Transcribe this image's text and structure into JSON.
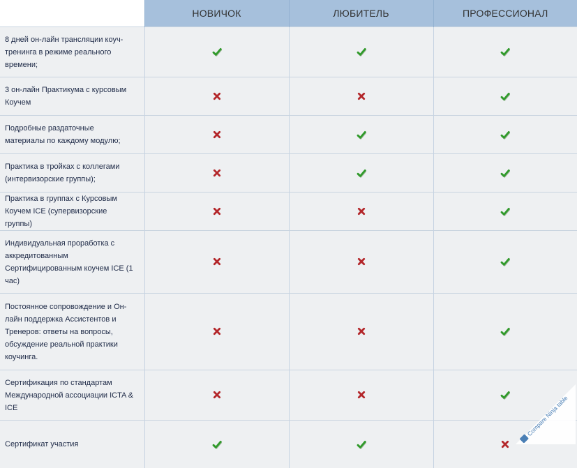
{
  "plans": [
    "НОВИЧОК",
    "ЛЮБИТЕЛЬ",
    "ПРОФЕССИОНАЛ"
  ],
  "features": [
    {
      "label": "8 дней он-лайн трансляции коуч-тренинга в режиме реального времени;",
      "marks": [
        true,
        true,
        true
      ]
    },
    {
      "label": "3 он-лайн Практикума с курсовым Коучем",
      "marks": [
        false,
        false,
        true
      ]
    },
    {
      "label": "Подробные раздаточные материалы по каждому модулю;",
      "marks": [
        false,
        true,
        true
      ]
    },
    {
      "label": "Практика в тройках с коллегами (интервизорские группы);",
      "marks": [
        false,
        true,
        true
      ]
    },
    {
      "label": "Практика в группах с Курсовым Коучем ICE (супервизорские группы)",
      "marks": [
        false,
        false,
        true
      ]
    },
    {
      "label": "Индивидуальная проработка с аккредитованным Сертифицированным коучем ICE (1 час)",
      "marks": [
        false,
        false,
        true
      ]
    },
    {
      "label": "Постоянное сопровождение и Он-лайн поддержка Ассистентов и Тренеров: ответы на вопросы, обсуждение реальной практики коучинга.",
      "marks": [
        false,
        false,
        true
      ]
    },
    {
      "label": "Сертификация по стандартам Международной ассоциации ICTA & ICE",
      "marks": [
        false,
        false,
        true
      ]
    },
    {
      "label": "Сертификат участия",
      "marks": [
        true,
        true,
        false
      ]
    }
  ],
  "icons": {
    "yes": "check-icon",
    "no": "cross-icon"
  },
  "colors": {
    "header_bg": "#a6c0dc",
    "row_bg": "#eef0f2",
    "check": "#2f9a2a",
    "cross": "#b3262a"
  },
  "watermark": {
    "text": "Compare Ninja table"
  }
}
